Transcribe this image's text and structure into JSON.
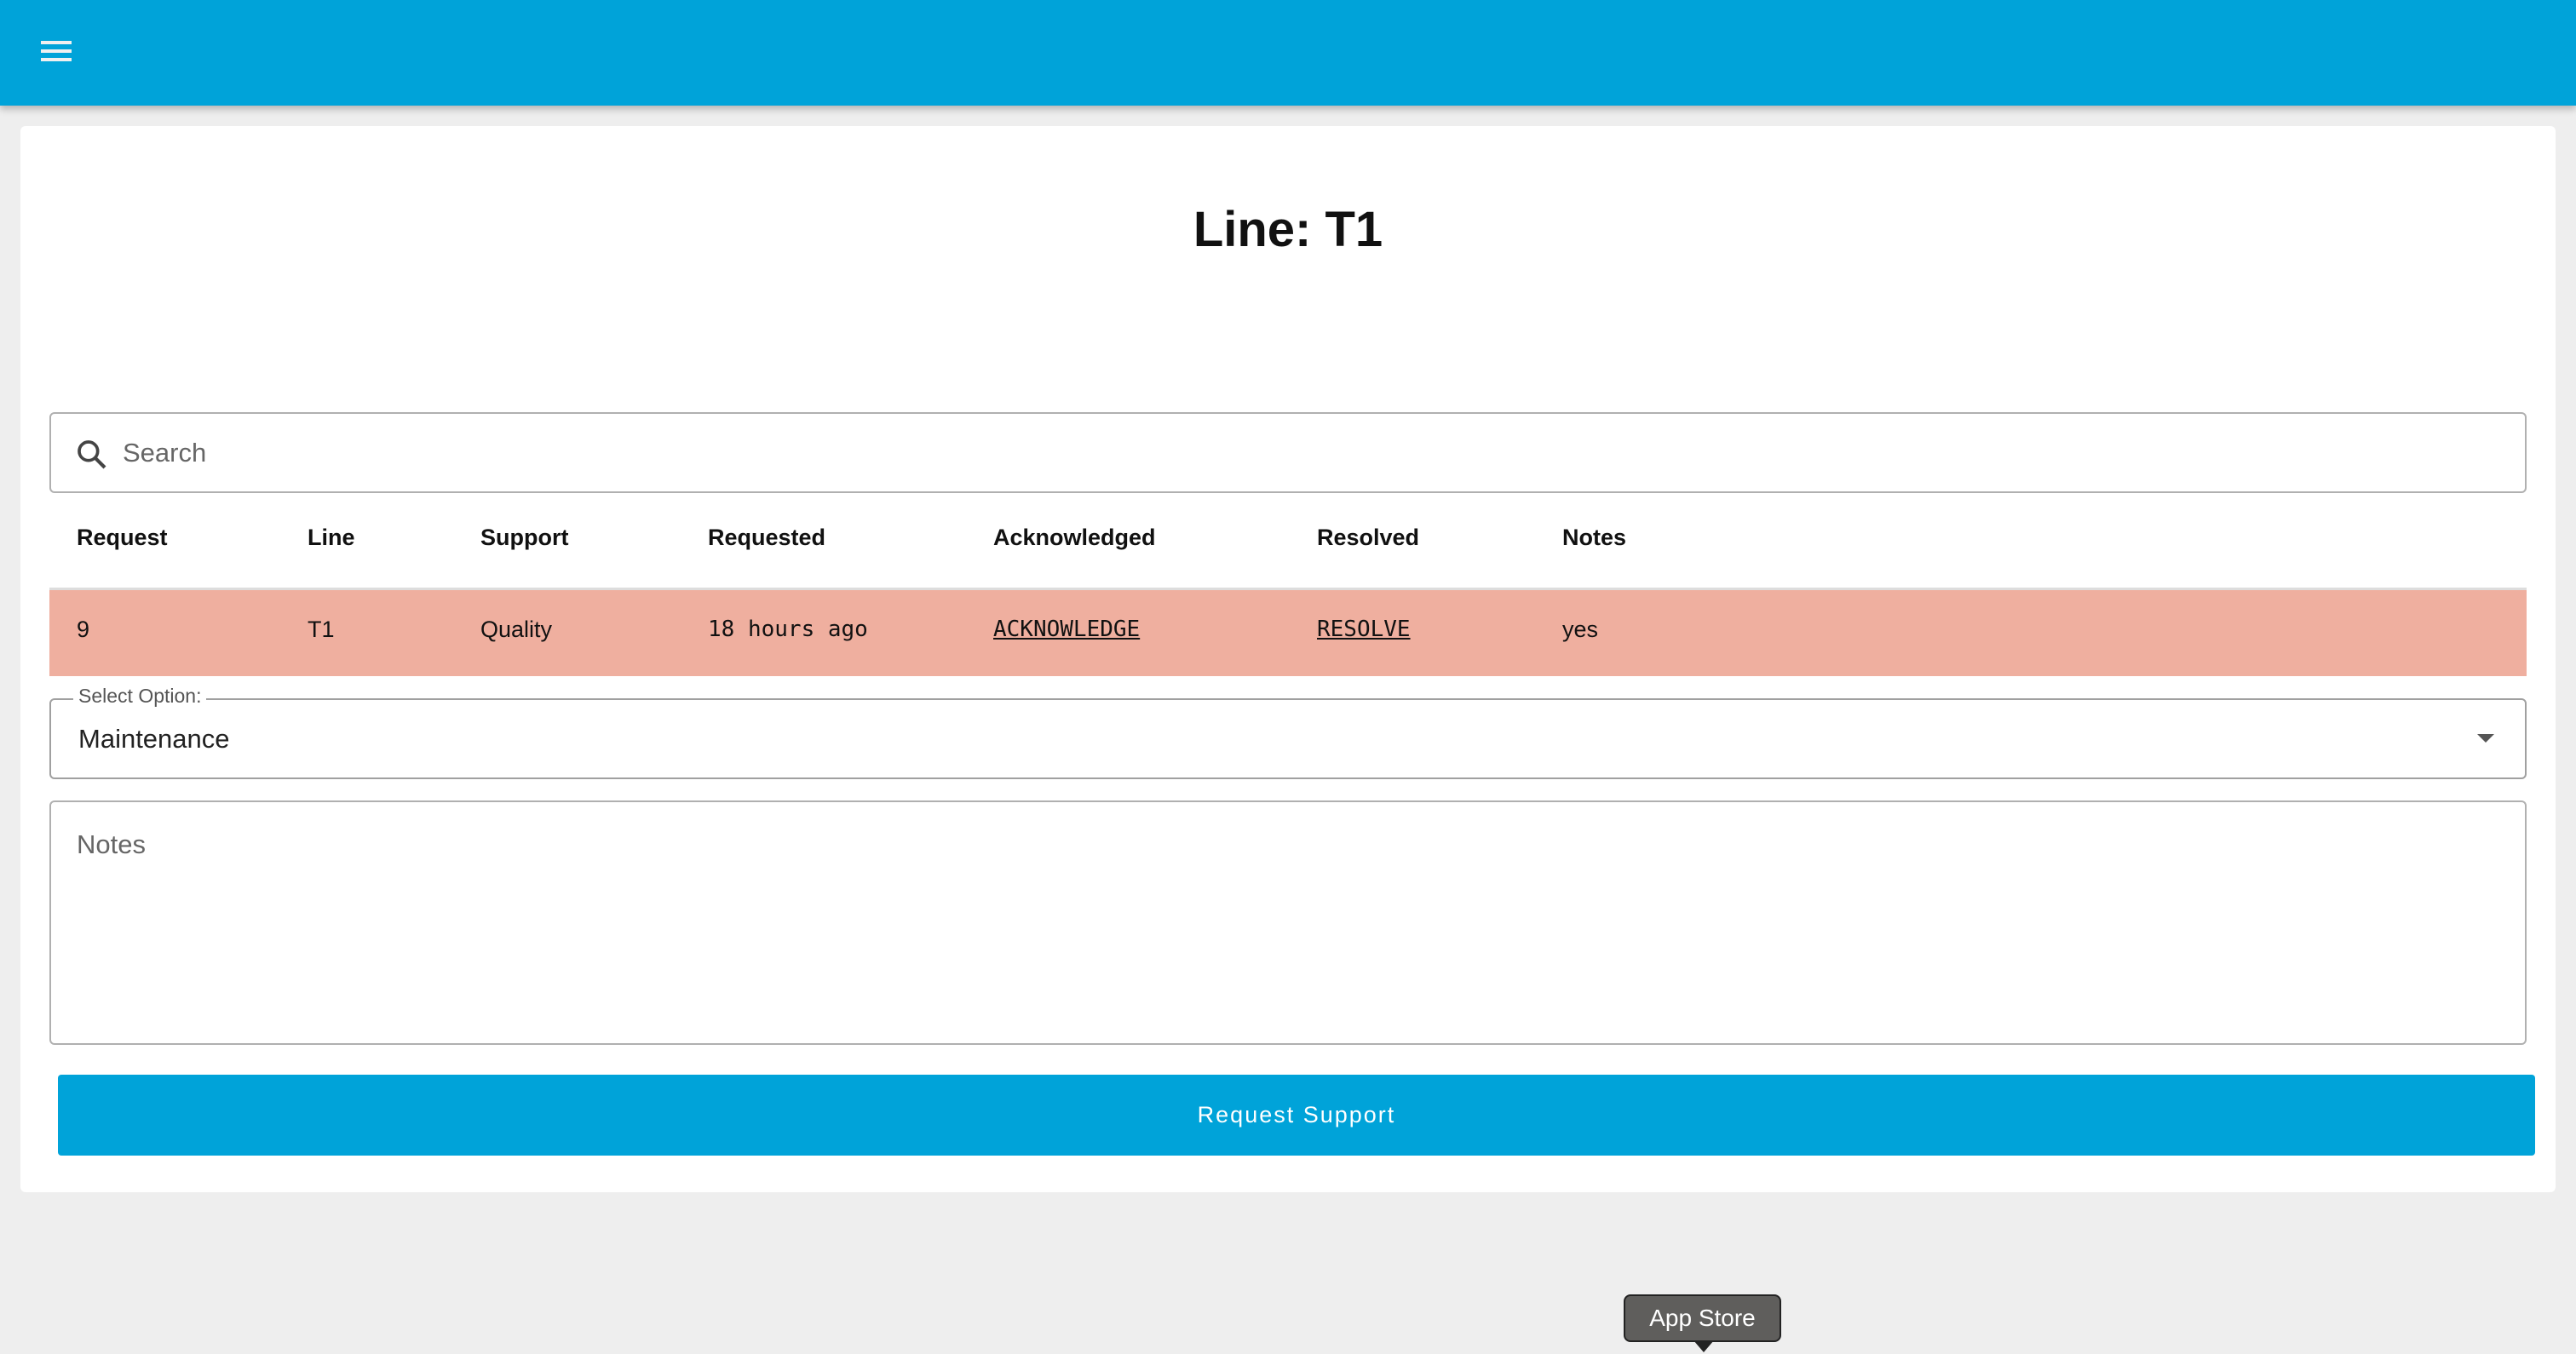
{
  "header": {
    "menu_icon": "hamburger-menu-icon",
    "color": "#00a3d9"
  },
  "page": {
    "title": "Line: T1"
  },
  "search": {
    "placeholder": "Search",
    "icon": "search-icon"
  },
  "table": {
    "columns": [
      "Request",
      "Line",
      "Support",
      "Requested",
      "Acknowledged",
      "Resolved",
      "Notes"
    ],
    "rows": [
      {
        "request": "9",
        "line": "T1",
        "support": "Quality",
        "requested": "18 hours ago",
        "acknowledged": "ACKNOWLEDGE",
        "resolved": "RESOLVE",
        "notes": "yes",
        "color": "#efaf9f"
      }
    ]
  },
  "form": {
    "select_label": "Select Option:",
    "select_value": "Maintenance",
    "notes_placeholder": "Notes",
    "submit_label": "Request Support"
  },
  "tooltip": {
    "text": "App Store"
  }
}
